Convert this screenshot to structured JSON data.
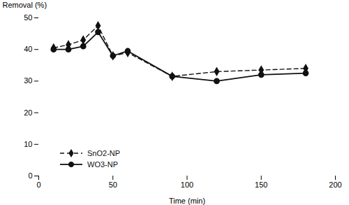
{
  "chart_data": {
    "type": "line",
    "x": [
      10,
      20,
      30,
      40,
      50,
      60,
      90,
      120,
      150,
      180
    ],
    "series": [
      {
        "name": "SnO2-NP",
        "color": "#111111",
        "marker": "diamond",
        "line_style": "dashed",
        "values": [
          40.5,
          41.5,
          43.0,
          47.5,
          38.0,
          39.0,
          31.5,
          33.0,
          33.5,
          34.0
        ]
      },
      {
        "name": "WO3-NP",
        "color": "#111111",
        "marker": "circle",
        "line_style": "solid",
        "values": [
          40.0,
          40.0,
          41.0,
          45.5,
          38.0,
          39.5,
          31.5,
          30.0,
          32.0,
          32.5
        ]
      }
    ],
    "xlabel": "Time (min)",
    "ylabel": "Removal (%)",
    "xlim": [
      0,
      200
    ],
    "ylim": [
      0,
      50
    ],
    "xticks": [
      0,
      50,
      100,
      150,
      200
    ],
    "yticks": [
      0,
      10,
      20,
      30,
      40,
      50
    ],
    "grid": false,
    "legend": "lower left"
  }
}
